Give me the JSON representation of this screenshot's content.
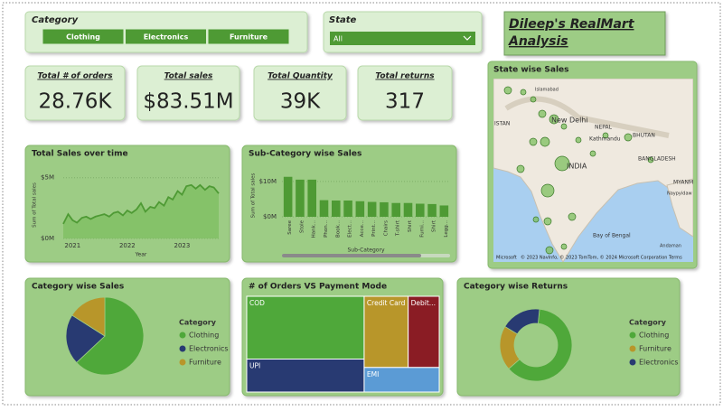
{
  "title": [
    "Dileep's RealMart",
    "Analysis"
  ],
  "slicers": {
    "category": {
      "label": "Category",
      "options": [
        "Clothing",
        "Electronics",
        "Furniture"
      ]
    },
    "state": {
      "label": "State",
      "value": "All"
    }
  },
  "cards": [
    {
      "label": "Total # of orders",
      "value": "28.76K"
    },
    {
      "label": "Total sales",
      "value": "$83.51M"
    },
    {
      "label": "Total Quantity",
      "value": "39K"
    },
    {
      "label": "Total returns",
      "value": "317"
    }
  ],
  "map": {
    "title": "State wise Sales",
    "labels": [
      "Islamabad",
      "New Delhi",
      "NEPAL",
      "Kathmandu",
      "BHUTAN",
      "BANGLADESH",
      "INDIA",
      "MYANMA",
      "Naypyidaw",
      "Bay of Bengal",
      "Andaman",
      "ISTAN"
    ],
    "attribution": "© 2023 NavInfo, © 2023 TomTom, © 2024 Microsoft Corporation  Terms",
    "logo": "Microsoft"
  },
  "chart_data": [
    {
      "type": "line",
      "title": "Total Sales over time",
      "x_label": "Year",
      "y_label": "Sum of Total sales",
      "color": "#4e9a34",
      "x": [
        2020.83,
        2020.92,
        2021.0,
        2021.08,
        2021.17,
        2021.25,
        2021.33,
        2021.42,
        2021.5,
        2021.58,
        2021.67,
        2021.75,
        2021.83,
        2021.92,
        2022.0,
        2022.08,
        2022.17,
        2022.25,
        2022.33,
        2022.42,
        2022.5,
        2022.58,
        2022.67,
        2022.75,
        2022.83,
        2022.92,
        2023.0,
        2023.08,
        2023.17,
        2023.25,
        2023.33,
        2023.42,
        2023.5,
        2023.58,
        2023.67
      ],
      "values": [
        1.2,
        2.0,
        1.5,
        1.3,
        1.7,
        1.8,
        1.6,
        1.8,
        1.9,
        2.0,
        1.8,
        2.1,
        2.2,
        1.9,
        2.3,
        2.1,
        2.4,
        2.9,
        2.2,
        2.6,
        2.5,
        3.0,
        2.7,
        3.4,
        3.2,
        3.9,
        3.6,
        4.3,
        4.4,
        4.1,
        4.4,
        4.0,
        4.3,
        4.2,
        3.7
      ],
      "xlim": [
        2020.83,
        2023.67
      ],
      "xticks": [
        2021,
        2022,
        2023
      ],
      "ylim": [
        0,
        5.5
      ],
      "yticks": [
        {
          "value": 0,
          "label": "$0M"
        },
        {
          "value": 5,
          "label": "$5M"
        }
      ]
    },
    {
      "type": "bar",
      "title": "Sub-Category wise Sales",
      "x_label": "Sub-Category",
      "y_label": "Sum of Total sales",
      "color": "#4e9a34",
      "categories": [
        "Saree",
        "Stole",
        "Hank...",
        "Phon...",
        "Book...",
        "Elect...",
        "Acce...",
        "Print...",
        "Chairs",
        "T-shirt",
        "Shirt",
        "Furni...",
        "Shirt",
        "Legg..."
      ],
      "values": [
        11.3,
        10.5,
        10.5,
        4.7,
        4.6,
        4.6,
        4.4,
        4.2,
        4.1,
        3.9,
        3.9,
        3.7,
        3.6,
        3.2
      ],
      "ylim": [
        0,
        12
      ],
      "yticks": [
        {
          "value": 0,
          "label": "$0M"
        },
        {
          "value": 10,
          "label": "$10M"
        }
      ]
    },
    {
      "type": "pie",
      "title": "Category wise Sales",
      "legend_title": "Category",
      "categories": [
        "Clothing",
        "Electronics",
        "Furniture"
      ],
      "values": [
        63,
        21,
        16
      ],
      "colors": [
        "#4fa83a",
        "#283a72",
        "#b8962a"
      ]
    },
    {
      "type": "treemap",
      "title": "# of Orders VS Payment Mode",
      "categories": [
        "COD",
        "UPI",
        "Credit Card",
        "Debit...",
        "EMI"
      ],
      "values": [
        40,
        21,
        17,
        12,
        10
      ],
      "colors": [
        "#4fa83a",
        "#283a72",
        "#b8962a",
        "#8a1c24",
        "#5b9bd5"
      ]
    },
    {
      "type": "donut",
      "title": "Category wise Returns",
      "legend_title": "Category",
      "categories": [
        "Clothing",
        "Furniture",
        "Electronics"
      ],
      "values": [
        62,
        20,
        18
      ],
      "colors": [
        "#4fa83a",
        "#b8962a",
        "#283a72"
      ]
    }
  ]
}
